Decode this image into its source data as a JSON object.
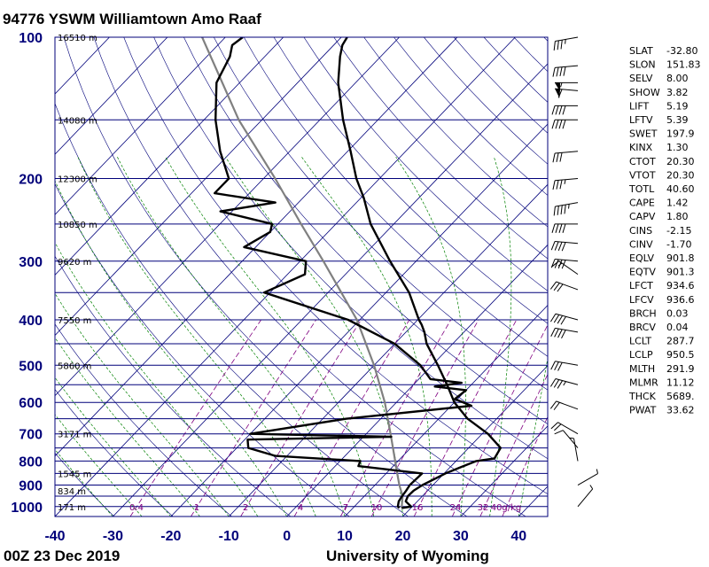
{
  "chart_data": {
    "type": "skew-t",
    "title": "94776 YSWM Williamtown Amo Raaf",
    "footer_left": "00Z 23 Dec 2019",
    "footer_right": "University of Wyoming",
    "pressure_ticks": [
      100,
      200,
      300,
      400,
      500,
      600,
      700,
      800,
      900,
      1000
    ],
    "temperature_ticks": [
      -40,
      -30,
      -20,
      -10,
      0,
      10,
      20,
      30,
      40
    ],
    "xlim": [
      -40,
      45
    ],
    "ylim": [
      1050,
      100
    ],
    "y_scale": "log",
    "height_labels": [
      {
        "p": 100,
        "label": "16510 m"
      },
      {
        "p": 150,
        "label": "14080 m"
      },
      {
        "p": 200,
        "label": "12300 m"
      },
      {
        "p": 250,
        "label": "10850 m"
      },
      {
        "p": 300,
        "label": "9620 m"
      },
      {
        "p": 400,
        "label": "7550 m"
      },
      {
        "p": 500,
        "label": "5860 m"
      },
      {
        "p": 700,
        "label": "3171 m"
      },
      {
        "p": 850,
        "label": "1545 m"
      },
      {
        "p": 925,
        "label": "834 m"
      },
      {
        "p": 1000,
        "label": "171 m"
      }
    ],
    "mixing_ratio_labels": [
      "0.4",
      "1",
      "2",
      "4",
      "7",
      "10",
      "16",
      "24",
      "32",
      "40g/kg"
    ],
    "temperature_profile": [
      {
        "p": 1007,
        "t": 18.4
      },
      {
        "p": 1000,
        "t": 19.8
      },
      {
        "p": 975,
        "t": 18.0
      },
      {
        "p": 950,
        "t": 17.5
      },
      {
        "p": 925,
        "t": 17.6
      },
      {
        "p": 900,
        "t": 18.2
      },
      {
        "p": 875,
        "t": 19.2
      },
      {
        "p": 850,
        "t": 20.2
      },
      {
        "p": 825,
        "t": 21.8
      },
      {
        "p": 800,
        "t": 23.5
      },
      {
        "p": 790,
        "t": 26.2
      },
      {
        "p": 750,
        "t": 25.5
      },
      {
        "p": 700,
        "t": 21.0
      },
      {
        "p": 650,
        "t": 15.0
      },
      {
        "p": 600,
        "t": 10.0
      },
      {
        "p": 550,
        "t": 5.8
      },
      {
        "p": 500,
        "t": 1.0
      },
      {
        "p": 450,
        "t": -4.5
      },
      {
        "p": 425,
        "t": -6.8
      },
      {
        "p": 410,
        "t": -8.5
      },
      {
        "p": 400,
        "t": -9.8
      },
      {
        "p": 350,
        "t": -16.0
      },
      {
        "p": 300,
        "t": -24.5
      },
      {
        "p": 250,
        "t": -34.0
      },
      {
        "p": 220,
        "t": -39.5
      },
      {
        "p": 200,
        "t": -44.0
      },
      {
        "p": 175,
        "t": -49.5
      },
      {
        "p": 150,
        "t": -56.0
      },
      {
        "p": 125,
        "t": -63.0
      },
      {
        "p": 110,
        "t": -67.0
      },
      {
        "p": 104,
        "t": -68.5
      },
      {
        "p": 100,
        "t": -69.0
      }
    ],
    "dewpoint_profile": [
      {
        "p": 1007,
        "t": 18.0
      },
      {
        "p": 1000,
        "t": 17.5
      },
      {
        "p": 975,
        "t": 16.8
      },
      {
        "p": 950,
        "t": 16.5
      },
      {
        "p": 925,
        "t": 16.3
      },
      {
        "p": 900,
        "t": 16.0
      },
      {
        "p": 850,
        "t": 16.2
      },
      {
        "p": 820,
        "t": 4.0
      },
      {
        "p": 800,
        "t": 3.5
      },
      {
        "p": 780,
        "t": -12.0
      },
      {
        "p": 750,
        "t": -18.0
      },
      {
        "p": 720,
        "t": -19.5
      },
      {
        "p": 710,
        "t": 4.8
      },
      {
        "p": 700,
        "t": -20.0
      },
      {
        "p": 650,
        "t": -6.0
      },
      {
        "p": 610,
        "t": 13.5
      },
      {
        "p": 590,
        "t": 9.5
      },
      {
        "p": 565,
        "t": 10.0
      },
      {
        "p": 555,
        "t": 4.0
      },
      {
        "p": 545,
        "t": 8.0
      },
      {
        "p": 535,
        "t": 2.0
      },
      {
        "p": 500,
        "t": -2.0
      },
      {
        "p": 450,
        "t": -10.0
      },
      {
        "p": 400,
        "t": -22.0
      },
      {
        "p": 350,
        "t": -41.0
      },
      {
        "p": 320,
        "t": -37.0
      },
      {
        "p": 300,
        "t": -39.0
      },
      {
        "p": 280,
        "t": -52.0
      },
      {
        "p": 260,
        "t": -50.0
      },
      {
        "p": 250,
        "t": -51.0
      },
      {
        "p": 235,
        "t": -62.0
      },
      {
        "p": 225,
        "t": -54.0
      },
      {
        "p": 215,
        "t": -66.0
      },
      {
        "p": 200,
        "t": -66.0
      },
      {
        "p": 175,
        "t": -72.0
      },
      {
        "p": 150,
        "t": -78.0
      },
      {
        "p": 125,
        "t": -84.0
      },
      {
        "p": 110,
        "t": -86.0
      },
      {
        "p": 104,
        "t": -87.5
      },
      {
        "p": 100,
        "t": -87.0
      }
    ],
    "parcel_profile": [
      {
        "p": 1007,
        "t": 18.4
      },
      {
        "p": 950,
        "t": 16.6
      },
      {
        "p": 900,
        "t": 14.2
      },
      {
        "p": 850,
        "t": 11.9
      },
      {
        "p": 800,
        "t": 9.5
      },
      {
        "p": 700,
        "t": 4.2
      },
      {
        "p": 600,
        "t": -2.0
      },
      {
        "p": 500,
        "t": -10.0
      },
      {
        "p": 400,
        "t": -20.5
      },
      {
        "p": 300,
        "t": -36.0
      },
      {
        "p": 250,
        "t": -46.0
      },
      {
        "p": 200,
        "t": -58.0
      },
      {
        "p": 150,
        "t": -74.0
      },
      {
        "p": 100,
        "t": -94.0
      }
    ],
    "wind_barbs": [
      {
        "p": 100,
        "dir": 260,
        "spd": 35
      },
      {
        "p": 115,
        "dir": 265,
        "spd": 40
      },
      {
        "p": 125,
        "dir": 270,
        "spd": 55
      },
      {
        "p": 130,
        "dir": 275,
        "spd": 60
      },
      {
        "p": 140,
        "dir": 270,
        "spd": 40
      },
      {
        "p": 150,
        "dir": 270,
        "spd": 40
      },
      {
        "p": 175,
        "dir": 265,
        "spd": 30
      },
      {
        "p": 200,
        "dir": 265,
        "spd": 35
      },
      {
        "p": 225,
        "dir": 260,
        "spd": 45
      },
      {
        "p": 250,
        "dir": 270,
        "spd": 40
      },
      {
        "p": 275,
        "dir": 275,
        "spd": 40
      },
      {
        "p": 300,
        "dir": 275,
        "spd": 40
      },
      {
        "p": 320,
        "dir": 305,
        "spd": 15
      },
      {
        "p": 345,
        "dir": 290,
        "spd": 30
      },
      {
        "p": 400,
        "dir": 285,
        "spd": 40
      },
      {
        "p": 425,
        "dir": 280,
        "spd": 40
      },
      {
        "p": 500,
        "dir": 280,
        "spd": 30
      },
      {
        "p": 550,
        "dir": 285,
        "spd": 35
      },
      {
        "p": 620,
        "dir": 290,
        "spd": 20
      },
      {
        "p": 700,
        "dir": 300,
        "spd": 20
      },
      {
        "p": 750,
        "dir": 320,
        "spd": 10
      },
      {
        "p": 800,
        "dir": 350,
        "spd": 5
      },
      {
        "p": 900,
        "dir": 60,
        "spd": 5
      },
      {
        "p": 1000,
        "dir": 40,
        "spd": 5
      }
    ],
    "indices": [
      {
        "name": "SLAT",
        "value": "-32.80"
      },
      {
        "name": "SLON",
        "value": "151.83"
      },
      {
        "name": "SELV",
        "value": "8.00"
      },
      {
        "name": "SHOW",
        "value": "3.82"
      },
      {
        "name": "LIFT",
        "value": "5.19"
      },
      {
        "name": "LFTV",
        "value": "5.39"
      },
      {
        "name": "SWET",
        "value": "197.9"
      },
      {
        "name": "KINX",
        "value": "1.30"
      },
      {
        "name": "CTOT",
        "value": "20.30"
      },
      {
        "name": "VTOT",
        "value": "20.30"
      },
      {
        "name": "TOTL",
        "value": "40.60"
      },
      {
        "name": "CAPE",
        "value": "1.42"
      },
      {
        "name": "CAPV",
        "value": "1.80"
      },
      {
        "name": "CINS",
        "value": "-2.15"
      },
      {
        "name": "CINV",
        "value": "-1.70"
      },
      {
        "name": "EQLV",
        "value": "901.8"
      },
      {
        "name": "EQTV",
        "value": "901.3"
      },
      {
        "name": "LFCT",
        "value": "934.6"
      },
      {
        "name": "LFCV",
        "value": "936.6"
      },
      {
        "name": "BRCH",
        "value": "0.03"
      },
      {
        "name": "BRCV",
        "value": "0.04"
      },
      {
        "name": "LCLT",
        "value": "287.7"
      },
      {
        "name": "LCLP",
        "value": "950.5"
      },
      {
        "name": "MLTH",
        "value": "291.9"
      },
      {
        "name": "MLMR",
        "value": "11.12"
      },
      {
        "name": "THCK",
        "value": "5689."
      },
      {
        "name": "PWAT",
        "value": "33.62"
      }
    ],
    "colors": {
      "isobar": "#00007a",
      "isotherm": "#00007a",
      "dry_adiabat": "#00007a",
      "moist_adiabat": "#008000",
      "mixing_ratio": "#800080",
      "sounding": "#000000",
      "parcel": "#808080"
    }
  }
}
